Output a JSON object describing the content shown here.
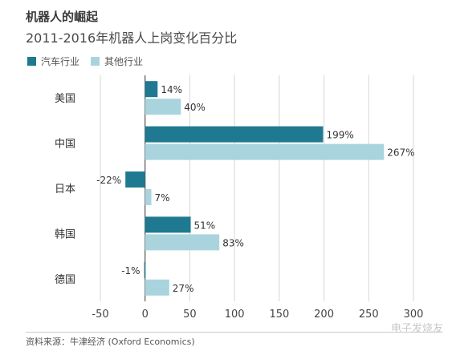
{
  "chart_data": {
    "type": "bar",
    "orientation": "horizontal",
    "title": "机器人的崛起",
    "subtitle": "2011-2016年机器人上岗变化百分比",
    "categories": [
      "美国",
      "中国",
      "日本",
      "韩国",
      "德国"
    ],
    "series": [
      {
        "name": "汽车行业",
        "color": "#1f7a91",
        "values": [
          14,
          199,
          -22,
          51,
          -1
        ],
        "labels": [
          "14%",
          "199%",
          "-22%",
          "51%",
          "-1%"
        ]
      },
      {
        "name": "其他行业",
        "color": "#a9d4de",
        "values": [
          40,
          267,
          7,
          83,
          27
        ],
        "labels": [
          "40%",
          "267%",
          "7%",
          "83%",
          "27%"
        ]
      }
    ],
    "xlim": [
      -50,
      300
    ],
    "xticks": [
      -50,
      0,
      50,
      100,
      150,
      200,
      250,
      300
    ],
    "xtick_labels": [
      "-50",
      "0",
      "50",
      "100",
      "150",
      "200",
      "250",
      "300"
    ],
    "grid": true,
    "legend": "top-left"
  },
  "source": "资料来源：牛津经济 (Oxford Economics)",
  "watermark": "电子发烧友"
}
